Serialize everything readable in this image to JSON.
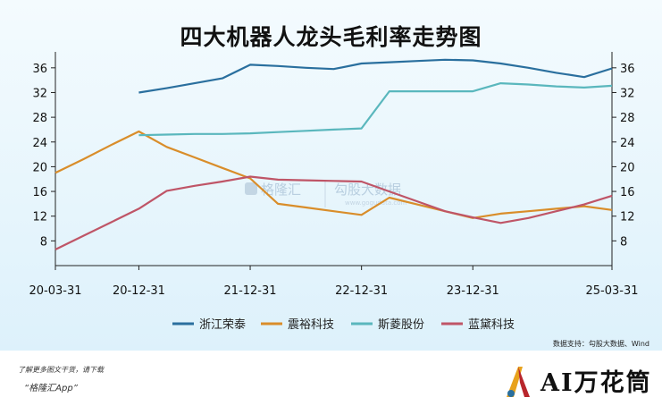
{
  "chart_data": {
    "type": "line",
    "title": "四大机器人龙头毛利率走势图",
    "x": [
      "20-03-31",
      "20-06-30",
      "20-09-30",
      "20-12-31",
      "21-03-31",
      "21-06-30",
      "21-09-30",
      "21-12-31",
      "22-03-31",
      "22-06-30",
      "22-09-30",
      "22-12-31",
      "23-03-31",
      "23-06-30",
      "23-09-30",
      "23-12-31",
      "24-03-31",
      "24-06-30",
      "24-09-30",
      "24-12-31",
      "25-03-31"
    ],
    "x_tick_labels": [
      "20-03-31",
      "20-12-31",
      "21-12-31",
      "22-12-31",
      "23-12-31",
      "25-03-31"
    ],
    "y_ticks": [
      8,
      12,
      16,
      20,
      24,
      28,
      32,
      36
    ],
    "ylim": [
      4,
      38
    ],
    "grid": false,
    "legend_position": "bottom",
    "series": [
      {
        "name": "浙江荣泰",
        "color": "#2a6f9e",
        "values": [
          null,
          null,
          null,
          32.0,
          32.7,
          33.5,
          34.3,
          36.5,
          36.3,
          36.0,
          35.8,
          36.7,
          36.9,
          37.1,
          37.3,
          37.2,
          36.7,
          36.0,
          35.2,
          34.5,
          35.9
        ]
      },
      {
        "name": "震裕科技",
        "color": "#d98d2a",
        "values": [
          19.0,
          21.2,
          23.5,
          25.7,
          23.2,
          21.5,
          19.8,
          18.1,
          14.0,
          13.4,
          12.8,
          12.2,
          15.0,
          13.9,
          12.8,
          11.7,
          12.4,
          12.8,
          13.2,
          13.6,
          13.0
        ]
      },
      {
        "name": "斯菱股份",
        "color": "#5ab7bd",
        "values": [
          null,
          null,
          null,
          25.1,
          25.2,
          25.3,
          25.3,
          25.4,
          25.6,
          25.8,
          26.0,
          26.2,
          32.2,
          32.2,
          32.2,
          32.2,
          33.5,
          33.3,
          33.0,
          32.8,
          33.1
        ]
      },
      {
        "name": "蓝黛科技",
        "color": "#bf5567",
        "values": [
          6.6,
          8.8,
          11.0,
          13.2,
          16.1,
          16.9,
          17.6,
          18.4,
          17.9,
          17.8,
          17.7,
          17.6,
          16.0,
          14.4,
          12.8,
          11.8,
          10.9,
          11.7,
          12.8,
          13.9,
          15.3
        ]
      }
    ]
  },
  "watermark": {
    "brand": "格隆汇",
    "site": "勾股大数据",
    "url": "www.gogudata.com"
  },
  "source": "数据支持：勾股大数据、Wind",
  "footer": {
    "line1": "了解更多图文干货，请下载",
    "line2": "“格隆汇App”"
  },
  "brand_box": {
    "text": "AI万花筒",
    "logo_icon": "kaleidoscope-logo-icon",
    "logo_colors": [
      "#e8a21c",
      "#b8262c",
      "#2a6f9e"
    ]
  }
}
